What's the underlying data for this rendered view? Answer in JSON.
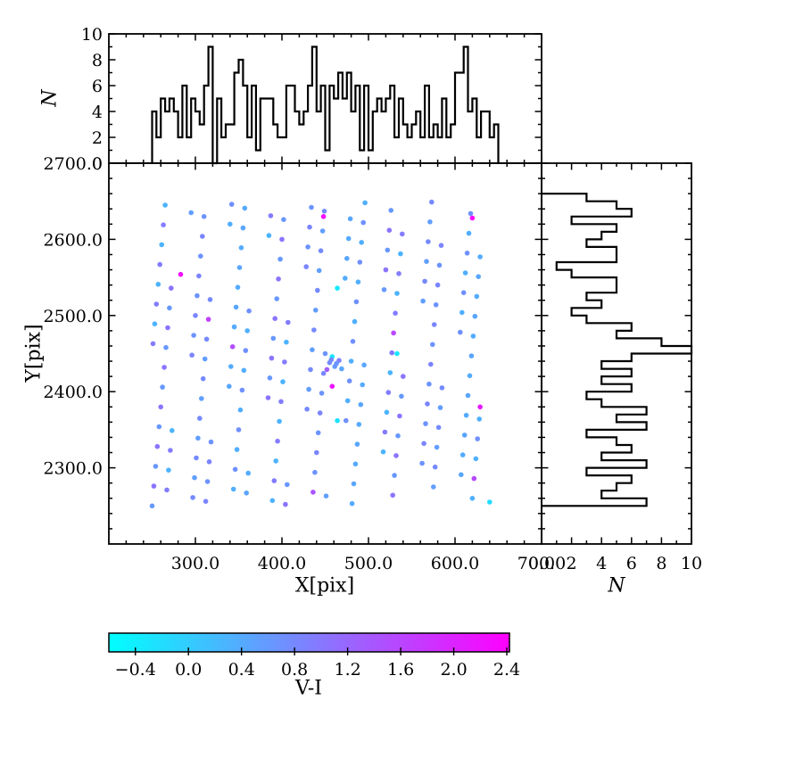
{
  "chart_data": {
    "type": "scatter",
    "title": "",
    "xlabel": "X[pix]",
    "ylabel": "Y[pix]",
    "xlim": [
      200,
      700
    ],
    "ylim": [
      2200,
      2700
    ],
    "grid": false,
    "x_tick_values": [
      300,
      400,
      500,
      600,
      700
    ],
    "x_tick_labels": [
      "300.0",
      "400.0",
      "500.0",
      "600.0",
      "700.0"
    ],
    "x_minor_step": 20,
    "y_tick_values": [
      2300,
      2400,
      2500,
      2600,
      2700
    ],
    "y_tick_labels": [
      "2300.0",
      "2400.0",
      "2500.0",
      "2600.0",
      "2700.0"
    ],
    "y_minor_step": 20,
    "top_histogram": {
      "type": "step",
      "ylabel": "N",
      "ylim": [
        0,
        10
      ],
      "tick_values": [
        0,
        2,
        4,
        6,
        8,
        10
      ],
      "tick_labels": [
        "0",
        "2",
        "4",
        "6",
        "8",
        "10"
      ],
      "bin_start": 250,
      "bin_width": 5,
      "counts": [
        4,
        2,
        5,
        4,
        5,
        4,
        2,
        6,
        2,
        5,
        4,
        3,
        6,
        9,
        0,
        5,
        2,
        3,
        3,
        7,
        8,
        6,
        2,
        6,
        1,
        5,
        5,
        5,
        3,
        2,
        2,
        6,
        6,
        4,
        3,
        4,
        6,
        9,
        4,
        6,
        1,
        6,
        5,
        7,
        5,
        7,
        4,
        6,
        1,
        6,
        1,
        4,
        5,
        4,
        5,
        6,
        2,
        5,
        3,
        2,
        3,
        4,
        2,
        6,
        2,
        3,
        2,
        5,
        2,
        3,
        7,
        7,
        9,
        4,
        5,
        2,
        4,
        4,
        2,
        3
      ]
    },
    "right_histogram": {
      "type": "step",
      "xlabel": "N",
      "xlim": [
        0,
        10
      ],
      "tick_values": [
        0,
        2,
        4,
        6,
        8,
        10
      ],
      "tick_labels": [
        "0.0",
        "2",
        "4",
        "6",
        "8",
        "10"
      ],
      "bin_start": 2250,
      "bin_width": 10,
      "counts": [
        7,
        4,
        5,
        6,
        3,
        7,
        4,
        6,
        5,
        3,
        7,
        5,
        7,
        4,
        3,
        6,
        4,
        6,
        4,
        6,
        10,
        8,
        5,
        6,
        3,
        2,
        4,
        3,
        5,
        5,
        2,
        1,
        5,
        5,
        3,
        4,
        5,
        2,
        6,
        5,
        3
      ]
    },
    "colorbar": {
      "label": "V-I",
      "vmin": -0.6,
      "vmax": 2.42,
      "tick_values": [
        -0.4,
        0.0,
        0.4,
        0.8,
        1.2,
        1.6,
        2.0,
        2.4
      ],
      "tick_labels": [
        "−0.4",
        "0.0",
        "0.4",
        "0.8",
        "1.2",
        "1.6",
        "2.0",
        "2.4"
      ],
      "cmap_endpoints": [
        "#00ffff",
        "#ff00ff"
      ]
    },
    "points": [
      [
        250,
        2250,
        0.62
      ],
      [
        339,
        2407,
        0.45
      ],
      [
        428,
        2564,
        0.85
      ],
      [
        517,
        2321,
        0.3
      ],
      [
        606,
        2478,
        0.72
      ],
      [
        295,
        2635,
        0.55
      ],
      [
        384,
        2392,
        1.05
      ],
      [
        473,
        2549,
        0.4
      ],
      [
        562,
        2306,
        0.68
      ],
      [
        251,
        2463,
        0.95
      ],
      [
        340,
        2620,
        0.35
      ],
      [
        429,
        2377,
        0.78
      ],
      [
        518,
        2534,
        0.62
      ],
      [
        607,
        2291,
        0.45
      ],
      [
        296,
        2448,
        0.85
      ],
      [
        385,
        2605,
        0.3
      ],
      [
        474,
        2362,
        0.72
      ],
      [
        563,
        2519,
        0.55
      ],
      [
        252,
        2276,
        1.05
      ],
      [
        341,
        2433,
        0.4
      ],
      [
        430,
        2590,
        0.68
      ],
      [
        519,
        2347,
        0.95
      ],
      [
        608,
        2504,
        0.35
      ],
      [
        297,
        2261,
        0.78
      ],
      [
        386,
        2418,
        0.62
      ],
      [
        475,
        2575,
        0.45
      ],
      [
        564,
        2332,
        0.85
      ],
      [
        253,
        2489,
        0.3
      ],
      [
        342,
        2646,
        0.72
      ],
      [
        431,
        2403,
        0.55
      ],
      [
        520,
        2560,
        1.05
      ],
      [
        609,
        2317,
        0.4
      ],
      [
        298,
        2474,
        0.68
      ],
      [
        387,
        2631,
        0.95
      ],
      [
        476,
        2388,
        0.35
      ],
      [
        565,
        2545,
        0.78
      ],
      [
        254,
        2302,
        0.62
      ],
      [
        343,
        2459,
        1.5
      ],
      [
        432,
        2616,
        0.85
      ],
      [
        521,
        2373,
        0.3
      ],
      [
        610,
        2530,
        0.72
      ],
      [
        299,
        2287,
        0.55
      ],
      [
        388,
        2444,
        1.05
      ],
      [
        477,
        2601,
        0.4
      ],
      [
        566,
        2358,
        0.68
      ],
      [
        255,
        2515,
        0.95
      ],
      [
        344,
        2272,
        0.35
      ],
      [
        433,
        2429,
        0.78
      ],
      [
        522,
        2586,
        0.62
      ],
      [
        611,
        2343,
        0.45
      ],
      [
        300,
        2500,
        0.85
      ],
      [
        389,
        2257,
        0.3
      ],
      [
        478,
        2414,
        0.72
      ],
      [
        567,
        2571,
        0.55
      ],
      [
        256,
        2328,
        1.05
      ],
      [
        345,
        2485,
        0.4
      ],
      [
        434,
        2642,
        0.68
      ],
      [
        523,
        2399,
        0.95
      ],
      [
        612,
        2556,
        0.35
      ],
      [
        301,
        2313,
        0.78
      ],
      [
        390,
        2470,
        0.62
      ],
      [
        479,
        2627,
        0.45
      ],
      [
        568,
        2384,
        0.85
      ],
      [
        257,
        2541,
        0.3
      ],
      [
        346,
        2298,
        0.72
      ],
      [
        435,
        2455,
        0.55
      ],
      [
        524,
        2612,
        1.05
      ],
      [
        613,
        2369,
        0.4
      ],
      [
        302,
        2526,
        0.68
      ],
      [
        391,
        2283,
        0.95
      ],
      [
        480,
        2440,
        0.35
      ],
      [
        569,
        2597,
        0.78
      ],
      [
        258,
        2354,
        0.62
      ],
      [
        347,
        2511,
        0.45
      ],
      [
        436,
        2268,
        1.45
      ],
      [
        525,
        2425,
        0.3
      ],
      [
        614,
        2582,
        0.72
      ],
      [
        303,
        2339,
        0.55
      ],
      [
        392,
        2496,
        1.05
      ],
      [
        481,
        2253,
        0.4
      ],
      [
        570,
        2410,
        0.68
      ],
      [
        259,
        2567,
        0.95
      ],
      [
        348,
        2324,
        0.35
      ],
      [
        437,
        2481,
        0.78
      ],
      [
        526,
        2638,
        0.62
      ],
      [
        615,
        2395,
        0.45
      ],
      [
        304,
        2552,
        0.85
      ],
      [
        393,
        2309,
        0.3
      ],
      [
        482,
        2466,
        0.72
      ],
      [
        571,
        2623,
        0.55
      ],
      [
        260,
        2380,
        1.05
      ],
      [
        349,
        2537,
        0.4
      ],
      [
        438,
        2294,
        0.68
      ],
      [
        527,
        2451,
        0.95
      ],
      [
        616,
        2608,
        0.35
      ],
      [
        305,
        2365,
        0.78
      ],
      [
        394,
        2522,
        0.62
      ],
      [
        483,
        2279,
        0.45
      ],
      [
        572,
        2436,
        0.85
      ],
      [
        261,
        2593,
        0.3
      ],
      [
        350,
        2350,
        0.72
      ],
      [
        439,
        2507,
        0.55
      ],
      [
        528,
        2264,
        1.05
      ],
      [
        617,
        2421,
        0.4
      ],
      [
        306,
        2578,
        0.68
      ],
      [
        395,
        2335,
        0.95
      ],
      [
        484,
        2492,
        0.35
      ],
      [
        573,
        2649,
        0.78
      ],
      [
        262,
        2406,
        0.62
      ],
      [
        351,
        2563,
        0.45
      ],
      [
        440,
        2320,
        0.85
      ],
      [
        529,
        2477,
        1.6
      ],
      [
        618,
        2634,
        0.72
      ],
      [
        307,
        2391,
        0.55
      ],
      [
        396,
        2548,
        1.05
      ],
      [
        485,
        2305,
        0.4
      ],
      [
        574,
        2462,
        0.68
      ],
      [
        263,
        2619,
        0.95
      ],
      [
        352,
        2376,
        0.35
      ],
      [
        441,
        2533,
        0.78
      ],
      [
        530,
        2290,
        0.62
      ],
      [
        619,
        2447,
        0.45
      ],
      [
        308,
        2604,
        0.85
      ],
      [
        397,
        2361,
        0.3
      ],
      [
        486,
        2518,
        0.72
      ],
      [
        575,
        2275,
        0.55
      ],
      [
        264,
        2432,
        1.05
      ],
      [
        353,
        2589,
        0.4
      ],
      [
        442,
        2346,
        0.68
      ],
      [
        531,
        2503,
        0.95
      ],
      [
        620,
        2260,
        0.35
      ],
      [
        309,
        2417,
        0.78
      ],
      [
        398,
        2574,
        0.62
      ],
      [
        487,
        2331,
        0.45
      ],
      [
        576,
        2488,
        0.85
      ],
      [
        265,
        2645,
        0.3
      ],
      [
        354,
        2402,
        0.72
      ],
      [
        443,
        2559,
        0.55
      ],
      [
        532,
        2316,
        1.05
      ],
      [
        621,
        2473,
        0.4
      ],
      [
        310,
        2630,
        0.68
      ],
      [
        399,
        2387,
        0.95
      ],
      [
        488,
        2544,
        0.35
      ],
      [
        577,
        2301,
        0.78
      ],
      [
        266,
        2458,
        0.62
      ],
      [
        355,
        2615,
        0.45
      ],
      [
        444,
        2372,
        0.85
      ],
      [
        533,
        2529,
        0.3
      ],
      [
        622,
        2286,
        1.55
      ],
      [
        311,
        2443,
        0.55
      ],
      [
        400,
        2600,
        1.05
      ],
      [
        489,
        2357,
        0.4
      ],
      [
        578,
        2514,
        0.68
      ],
      [
        267,
        2271,
        0.95
      ],
      [
        356,
        2428,
        0.35
      ],
      [
        445,
        2585,
        0.78
      ],
      [
        534,
        2342,
        0.62
      ],
      [
        623,
        2499,
        0.45
      ],
      [
        312,
        2256,
        0.85
      ],
      [
        401,
        2413,
        0.3
      ],
      [
        490,
        2570,
        0.72
      ],
      [
        579,
        2327,
        0.55
      ],
      [
        268,
        2484,
        1.05
      ],
      [
        357,
        2641,
        0.4
      ],
      [
        446,
        2398,
        0.68
      ],
      [
        535,
        2555,
        0.95
      ],
      [
        624,
        2312,
        0.35
      ],
      [
        313,
        2469,
        0.78
      ],
      [
        402,
        2626,
        0.62
      ],
      [
        491,
        2383,
        0.45
      ],
      [
        580,
        2540,
        0.85
      ],
      [
        269,
        2297,
        0.3
      ],
      [
        358,
        2454,
        0.72
      ],
      [
        447,
        2611,
        0.55
      ],
      [
        536,
        2368,
        1.05
      ],
      [
        625,
        2525,
        0.4
      ],
      [
        314,
        2282,
        0.68
      ],
      [
        403,
        2439,
        0.95
      ],
      [
        492,
        2596,
        0.35
      ],
      [
        581,
        2353,
        0.78
      ],
      [
        270,
        2510,
        0.62
      ],
      [
        359,
        2267,
        0.45
      ],
      [
        448,
        2424,
        0.85
      ],
      [
        537,
        2581,
        0.3
      ],
      [
        626,
        2338,
        0.72
      ],
      [
        315,
        2495,
        1.65
      ],
      [
        404,
        2252,
        1.05
      ],
      [
        493,
        2409,
        0.4
      ],
      [
        582,
        2566,
        0.68
      ],
      [
        271,
        2323,
        0.95
      ],
      [
        360,
        2480,
        0.35
      ],
      [
        449,
        2637,
        0.78
      ],
      [
        538,
        2394,
        0.62
      ],
      [
        627,
        2551,
        0.45
      ],
      [
        316,
        2308,
        0.85
      ],
      [
        405,
        2465,
        0.3
      ],
      [
        494,
        2622,
        0.72
      ],
      [
        583,
        2379,
        0.55
      ],
      [
        272,
        2536,
        1.05
      ],
      [
        361,
        2293,
        0.4
      ],
      [
        450,
        2450,
        0.68
      ],
      [
        539,
        2607,
        0.95
      ],
      [
        628,
        2364,
        0.35
      ],
      [
        317,
        2521,
        0.78
      ],
      [
        406,
        2278,
        0.62
      ],
      [
        495,
        2435,
        0.45
      ],
      [
        584,
        2592,
        0.85
      ],
      [
        273,
        2349,
        0.3
      ],
      [
        362,
        2506,
        0.72
      ],
      [
        451,
        2263,
        0.55
      ],
      [
        540,
        2420,
        1.05
      ],
      [
        629,
        2577,
        0.4
      ],
      [
        318,
        2334,
        0.68
      ],
      [
        407,
        2491,
        0.95
      ],
      [
        496,
        2648,
        0.35
      ],
      [
        585,
        2405,
        0.78
      ],
      [
        455,
        2438,
        0.75
      ],
      [
        461,
        2433,
        0.6
      ],
      [
        466,
        2441,
        0.9
      ],
      [
        458,
        2446,
        -0.3
      ],
      [
        452,
        2429,
        1.3
      ],
      [
        463,
        2437,
        0.65
      ],
      [
        469,
        2430,
        0.45
      ],
      [
        457,
        2442,
        0.8
      ],
      [
        448,
        2630,
        2.3
      ],
      [
        283,
        2554,
        2.25
      ],
      [
        620,
        2628,
        2.35
      ],
      [
        458,
        2407,
        2.2
      ],
      [
        629,
        2380,
        2.15
      ],
      [
        464,
        2536,
        -0.35
      ],
      [
        533,
        2450,
        -0.3
      ],
      [
        464,
        2362,
        -0.25
      ],
      [
        640,
        2255,
        -0.2
      ]
    ]
  }
}
